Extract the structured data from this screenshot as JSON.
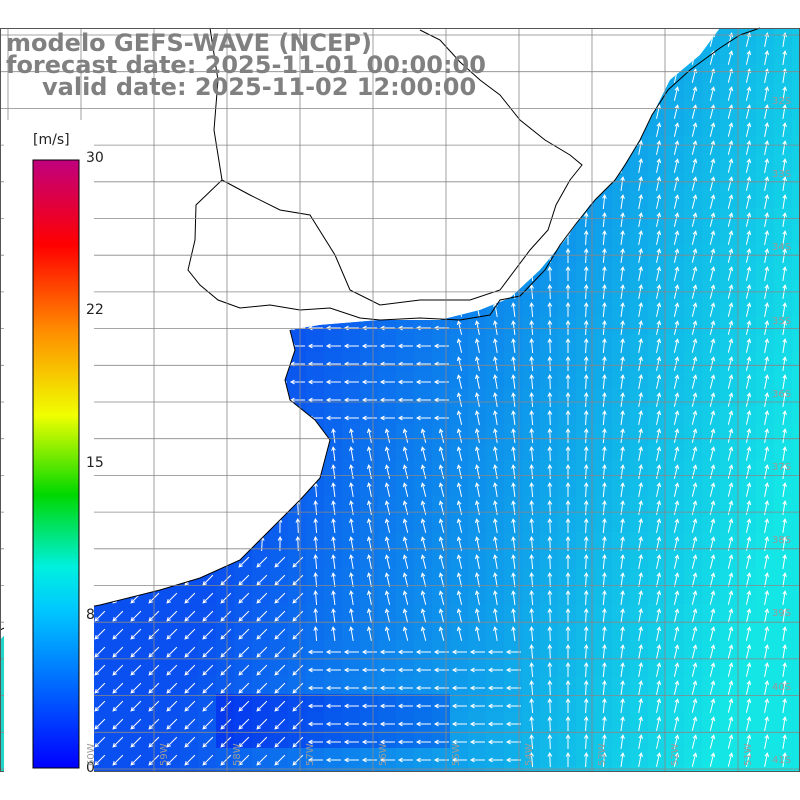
{
  "title": {
    "line1": "modelo GEFS-WAVE (NCEP)",
    "line2": "forecast date: 2025-11-01 00:00:00",
    "line3": "valid date: 2025-11-02 12:00:00"
  },
  "colorbar": {
    "unit": "[m/s]",
    "ticks": [
      "30",
      "22",
      "15",
      "8",
      "0"
    ],
    "tick_values": [
      30,
      22,
      15,
      8,
      0
    ],
    "min": 0,
    "max": 30,
    "colors": [
      "#0000ff",
      "#00b4ff",
      "#00ffe6",
      "#00e000",
      "#ffff00",
      "#ff8000",
      "#ff0000",
      "#c8007a"
    ]
  },
  "map": {
    "lat_labels": [
      "32S",
      "33S",
      "34S",
      "35S",
      "36S",
      "37S",
      "38S",
      "39S",
      "40S",
      "41S"
    ],
    "lon_labels": [
      "60W",
      "59W",
      "58W",
      "57W",
      "56W",
      "55W",
      "54W",
      "53W",
      "52W",
      "51W"
    ],
    "land_color": "#ffffff",
    "grid_color": "#888888",
    "coast_color": "#000000",
    "arrow_color": "#ffffff"
  }
}
